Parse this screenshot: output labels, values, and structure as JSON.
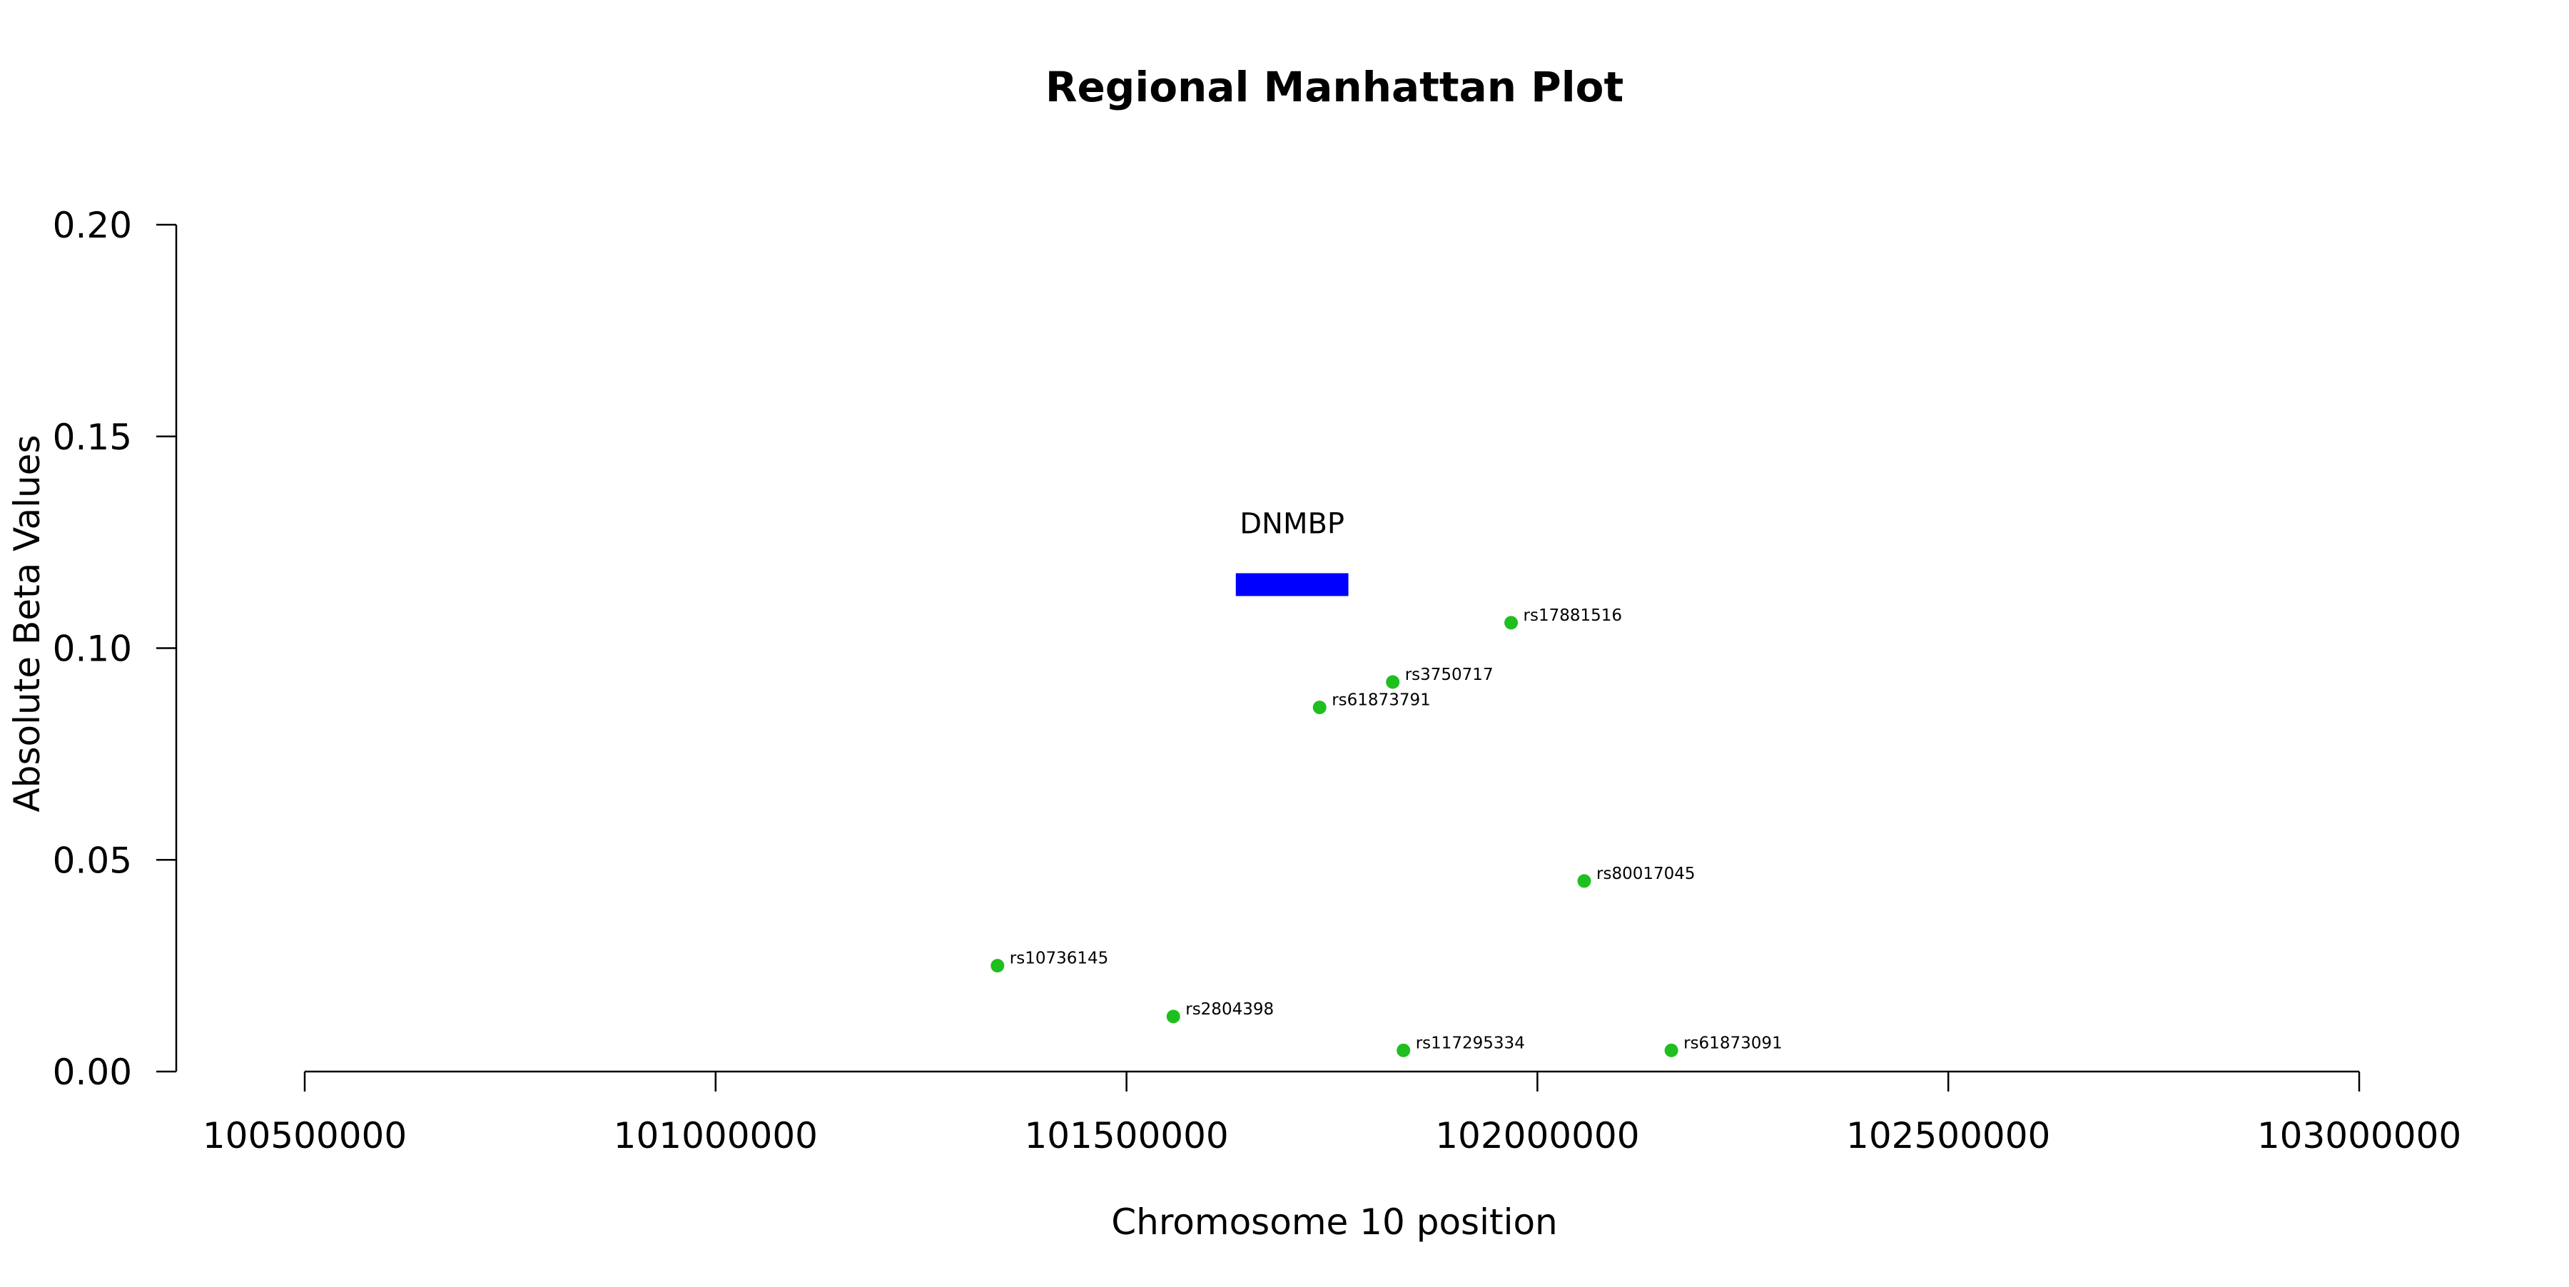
{
  "chart_data": {
    "type": "scatter",
    "title": "Regional Manhattan Plot",
    "xlabel": "Chromosome 10 position",
    "ylabel": "Absolute Beta Values",
    "xlim": [
      100500000,
      103000000
    ],
    "ylim": [
      0.0,
      0.2
    ],
    "x_ticks": [
      100500000,
      101000000,
      101500000,
      102000000,
      102500000,
      103000000
    ],
    "x_tick_labels": [
      "100500000",
      "101000000",
      "101500000",
      "102000000",
      "102500000",
      "103000000"
    ],
    "y_ticks": [
      0.0,
      0.05,
      0.1,
      0.15,
      0.2
    ],
    "y_tick_labels": [
      "0.00",
      "0.05",
      "0.10",
      "0.15",
      "0.20"
    ],
    "grid": false,
    "point_color": "#1fbf1f",
    "points": [
      {
        "label": "rs10736145",
        "x": 101343000,
        "y": 0.025
      },
      {
        "label": "rs2804398",
        "x": 101557000,
        "y": 0.013
      },
      {
        "label": "rs61873791",
        "x": 101735000,
        "y": 0.086
      },
      {
        "label": "rs3750717",
        "x": 101824000,
        "y": 0.092
      },
      {
        "label": "rs117295334",
        "x": 101837000,
        "y": 0.005
      },
      {
        "label": "rs17881516",
        "x": 101968000,
        "y": 0.106
      },
      {
        "label": "rs80017045",
        "x": 102057000,
        "y": 0.045
      },
      {
        "label": "rs61873091",
        "x": 102163000,
        "y": 0.005
      }
    ],
    "gene": {
      "name": "DNMBP",
      "start": 101633000,
      "end": 101770000,
      "y": 0.115,
      "color": "#0000ff"
    }
  }
}
